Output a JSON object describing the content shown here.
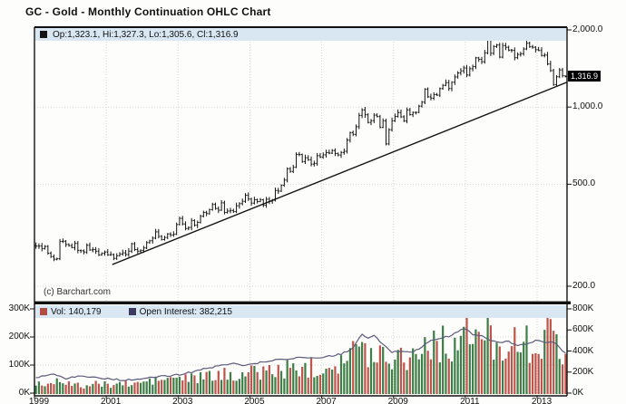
{
  "page": {
    "title": "GC - Gold - Monthly Continuation OHLC Chart",
    "copyright": "(c) Barchart.com"
  },
  "main_legend": {
    "label": "Op:1,323.1, Hi:1,327.3, Lo:1,305.6, Cl:1,316.9",
    "swatch_color": "#141414"
  },
  "volume_legend": {
    "vol_label": "Vol: 140,179",
    "vol_swatch_color": "#b04c44",
    "oi_label": "Open Interest: 382,215",
    "oi_swatch_color": "#3c3a63"
  },
  "price_axis": {
    "ticks": [
      {
        "label": "2,000.0",
        "value": 2000
      },
      {
        "label": "1,000.0",
        "value": 1000
      },
      {
        "label": "500.0",
        "value": 500
      },
      {
        "label": "200.0",
        "value": 200
      }
    ],
    "current": {
      "label": "1,316.9",
      "value": 1316.9
    }
  },
  "volume_axis_left": {
    "ticks": [
      {
        "label": "300K",
        "value": 300
      },
      {
        "label": "200K",
        "value": 200
      },
      {
        "label": "100K",
        "value": 100
      },
      {
        "label": "0K",
        "value": 0
      }
    ]
  },
  "oi_axis_right": {
    "ticks": [
      {
        "label": "800K",
        "value": 800
      },
      {
        "label": "600K",
        "value": 600
      },
      {
        "label": "400K",
        "value": 400
      },
      {
        "label": "200K",
        "value": 200
      },
      {
        "label": "0K",
        "value": 0
      }
    ]
  },
  "x_axis": {
    "ticks": [
      {
        "label": "1999",
        "month": 0
      },
      {
        "label": "2001",
        "month": 24
      },
      {
        "label": "2003",
        "month": 48
      },
      {
        "label": "2005",
        "month": 72
      },
      {
        "label": "2007",
        "month": 96
      },
      {
        "label": "2009",
        "month": 120
      },
      {
        "label": "2011",
        "month": 144
      },
      {
        "label": "2013",
        "month": 168
      }
    ]
  },
  "chart_data": {
    "type": "ohlc+volume",
    "title": "GC - Gold - Monthly Continuation OHLC Chart",
    "x_start": "1999-01",
    "x_end": "2013-10",
    "months": 178,
    "price_scale": "log",
    "price_ticks": [
      200,
      500,
      1000,
      2000
    ],
    "price_range_shown": [
      180,
      2150
    ],
    "closes": [
      287,
      287,
      280,
      286,
      269,
      261,
      255,
      256,
      299,
      300,
      291,
      288,
      283,
      294,
      276,
      275,
      272,
      289,
      277,
      278,
      274,
      265,
      269,
      272,
      265,
      266,
      257,
      263,
      267,
      270,
      266,
      274,
      293,
      278,
      274,
      276,
      282,
      296,
      301,
      308,
      326,
      313,
      304,
      310,
      320,
      317,
      319,
      348,
      368,
      350,
      336,
      339,
      361,
      346,
      355,
      375,
      388,
      384,
      398,
      417,
      402,
      396,
      423,
      388,
      393,
      395,
      391,
      412,
      420,
      429,
      453,
      438,
      422,
      435,
      428,
      435,
      414,
      437,
      429,
      433,
      473,
      470,
      495,
      519,
      575,
      561,
      582,
      654,
      653,
      613,
      634,
      623,
      599,
      603,
      646,
      638,
      651,
      664,
      661,
      677,
      659,
      650,
      665,
      672,
      743,
      795,
      783,
      838,
      928,
      975,
      933,
      871,
      885,
      930,
      918,
      833,
      884,
      718,
      816,
      884,
      919,
      952,
      916,
      883,
      975,
      934,
      953,
      953,
      1008,
      1045,
      1175,
      1096,
      1083,
      1118,
      1113,
      1180,
      1215,
      1245,
      1181,
      1250,
      1310,
      1359,
      1385,
      1421,
      1333,
      1411,
      1438,
      1556,
      1535,
      1502,
      1628,
      1826,
      1622,
      1722,
      1746,
      1566,
      1738,
      1711,
      1668,
      1664,
      1558,
      1604,
      1615,
      1685,
      1774,
      1719,
      1712,
      1675,
      1662,
      1588,
      1595,
      1472,
      1387,
      1224,
      1312,
      1396,
      1327,
      1316.9
    ],
    "last_bar": {
      "open": 1323.1,
      "high": 1327.3,
      "low": 1305.6,
      "close": 1316.9
    },
    "trendline": {
      "from_month": 26,
      "from_price": 243,
      "to_month": 178,
      "to_price": 1250
    },
    "volume_current": 140179,
    "open_interest_current": 382215,
    "volume_scale_k": [
      0,
      300
    ],
    "oi_scale_k": [
      0,
      800
    ],
    "volume_anchors_k": [
      [
        0,
        35
      ],
      [
        4,
        30
      ],
      [
        8,
        60
      ],
      [
        10,
        40
      ],
      [
        12,
        28
      ],
      [
        16,
        25
      ],
      [
        20,
        32
      ],
      [
        24,
        30
      ],
      [
        28,
        34
      ],
      [
        32,
        30
      ],
      [
        36,
        40
      ],
      [
        40,
        45
      ],
      [
        44,
        50
      ],
      [
        48,
        55
      ],
      [
        52,
        50
      ],
      [
        56,
        58
      ],
      [
        60,
        60
      ],
      [
        64,
        66
      ],
      [
        68,
        70
      ],
      [
        72,
        72
      ],
      [
        76,
        80
      ],
      [
        80,
        78
      ],
      [
        84,
        85
      ],
      [
        88,
        90
      ],
      [
        92,
        92
      ],
      [
        96,
        95
      ],
      [
        100,
        110
      ],
      [
        104,
        130
      ],
      [
        106,
        150
      ],
      [
        108,
        160
      ],
      [
        110,
        140
      ],
      [
        112,
        150
      ],
      [
        114,
        135
      ],
      [
        116,
        150
      ],
      [
        118,
        140
      ],
      [
        120,
        130
      ],
      [
        123,
        135
      ],
      [
        126,
        140
      ],
      [
        129,
        160
      ],
      [
        132,
        190
      ],
      [
        135,
        175
      ],
      [
        138,
        170
      ],
      [
        141,
        185
      ],
      [
        144,
        200
      ],
      [
        147,
        195
      ],
      [
        150,
        210
      ],
      [
        153,
        190
      ],
      [
        156,
        180
      ],
      [
        159,
        175
      ],
      [
        162,
        170
      ],
      [
        165,
        175
      ],
      [
        168,
        180
      ],
      [
        170,
        190
      ],
      [
        172,
        200
      ],
      [
        174,
        185
      ],
      [
        176,
        170
      ],
      [
        177,
        140.179
      ]
    ],
    "open_interest_anchors_k": [
      [
        0,
        150
      ],
      [
        6,
        185
      ],
      [
        10,
        140
      ],
      [
        14,
        160
      ],
      [
        20,
        150
      ],
      [
        26,
        130
      ],
      [
        30,
        125
      ],
      [
        36,
        135
      ],
      [
        42,
        160
      ],
      [
        48,
        175
      ],
      [
        52,
        200
      ],
      [
        56,
        230
      ],
      [
        60,
        250
      ],
      [
        66,
        290
      ],
      [
        70,
        260
      ],
      [
        76,
        300
      ],
      [
        82,
        320
      ],
      [
        88,
        340
      ],
      [
        92,
        330
      ],
      [
        98,
        350
      ],
      [
        102,
        370
      ],
      [
        106,
        430
      ],
      [
        109,
        560
      ],
      [
        111,
        520
      ],
      [
        113,
        545
      ],
      [
        116,
        460
      ],
      [
        119,
        390
      ],
      [
        122,
        400
      ],
      [
        126,
        390
      ],
      [
        129,
        440
      ],
      [
        132,
        500
      ],
      [
        135,
        520
      ],
      [
        138,
        540
      ],
      [
        141,
        580
      ],
      [
        143,
        620
      ],
      [
        146,
        560
      ],
      [
        149,
        540
      ],
      [
        152,
        500
      ],
      [
        155,
        480
      ],
      [
        158,
        490
      ],
      [
        161,
        450
      ],
      [
        164,
        470
      ],
      [
        167,
        500
      ],
      [
        170,
        480
      ],
      [
        173,
        490
      ],
      [
        175,
        430
      ],
      [
        177,
        382.215
      ]
    ],
    "colors": {
      "up_volume": "#3d7d46",
      "down_volume": "#bf544a",
      "open_interest_line": "#5c5b7a",
      "ohlc_bar": "#141414",
      "trendline": "#141414",
      "grid": "#d8d8d0",
      "legend_strip": "#d9e7f3",
      "frame": "#111111",
      "current_tag_bg": "#000000",
      "current_tag_text": "#ffffff"
    }
  }
}
